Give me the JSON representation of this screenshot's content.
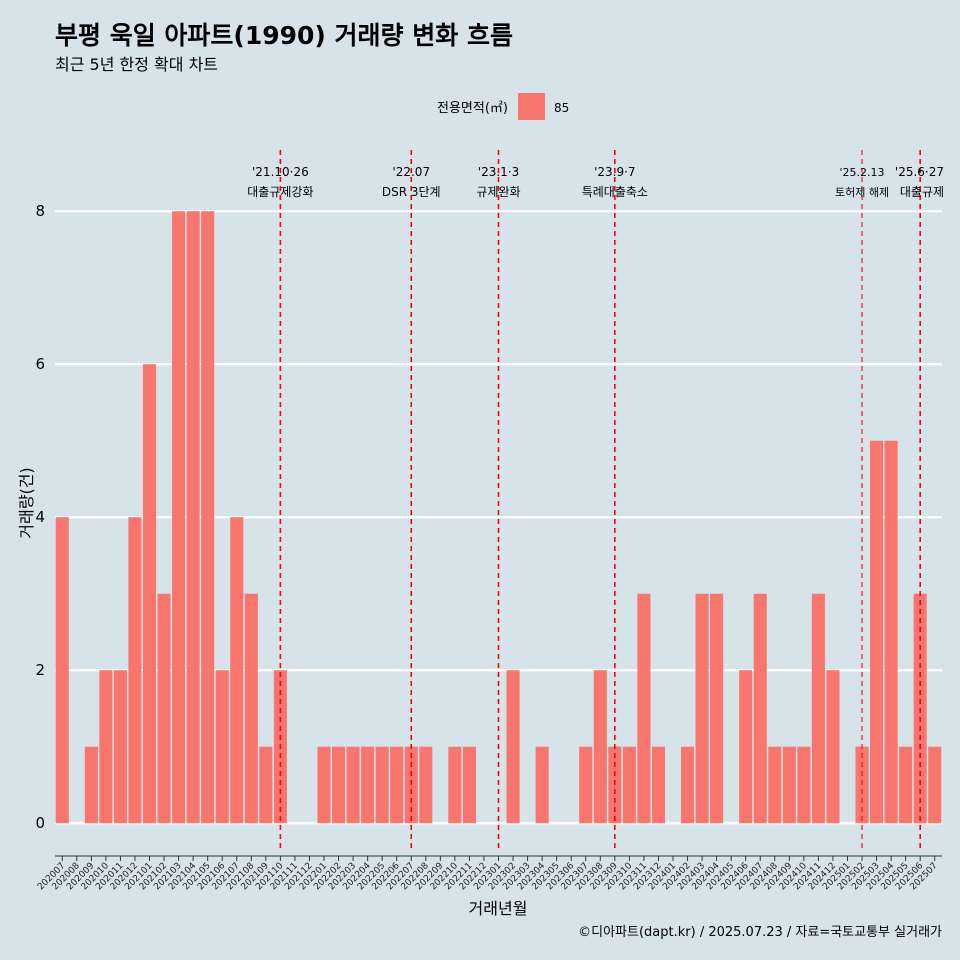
{
  "title": "부평 욱일 아파트(1990) 거래량 변화 흐름",
  "subtitle": "최근 5년 한정 확대 차트",
  "caption": "©디아파트(dapt.kr) / 2025.07.23 / 자료=국토교통부 실거래가",
  "legend": {
    "title": "전용면적(㎡)",
    "label": "85",
    "color": "#f8766d"
  },
  "chart_data": {
    "type": "bar",
    "xlabel": "거래년월",
    "ylabel": "거래량(건)",
    "ylim": [
      -0.35,
      8.8
    ],
    "yticks": [
      0,
      2,
      4,
      6,
      8
    ],
    "bar_color": "#f8766d",
    "grid": "horizontal",
    "legend_position": "top",
    "categories": [
      "202007",
      "202008",
      "202009",
      "202010",
      "202011",
      "202012",
      "202101",
      "202102",
      "202103",
      "202104",
      "202105",
      "202106",
      "202107",
      "202108",
      "202109",
      "202110",
      "202111",
      "202112",
      "202201",
      "202202",
      "202203",
      "202204",
      "202205",
      "202206",
      "202207",
      "202208",
      "202209",
      "202210",
      "202211",
      "202212",
      "202301",
      "202302",
      "202303",
      "202304",
      "202305",
      "202306",
      "202307",
      "202308",
      "202309",
      "202310",
      "202311",
      "202312",
      "202401",
      "202402",
      "202403",
      "202404",
      "202405",
      "202406",
      "202407",
      "202408",
      "202409",
      "202410",
      "202411",
      "202412",
      "202501",
      "202502",
      "202503",
      "202504",
      "202505",
      "202506",
      "202507"
    ],
    "series": [
      {
        "name": "85",
        "values": [
          4,
          0,
          1,
          2,
          2,
          4,
          6,
          3,
          8,
          8,
          8,
          2,
          4,
          3,
          1,
          2,
          0,
          0,
          1,
          1,
          1,
          1,
          1,
          1,
          1,
          1,
          0,
          1,
          1,
          0,
          0,
          2,
          0,
          1,
          0,
          0,
          1,
          2,
          1,
          1,
          3,
          1,
          0,
          1,
          3,
          3,
          0,
          2,
          3,
          1,
          1,
          1,
          3,
          2,
          0,
          1,
          5,
          5,
          1,
          3,
          1
        ]
      }
    ],
    "events": [
      {
        "position": 15.0,
        "date": "'21.10·26",
        "label": "대출규제강화",
        "style": "bold"
      },
      {
        "position": 24.0,
        "date": "'22.07",
        "label": "DSR 3단계",
        "style": "bold"
      },
      {
        "position": 30.0,
        "date": "'23.1·3",
        "label": "규제완화",
        "style": "bold"
      },
      {
        "position": 38.0,
        "date": "'23.9·7",
        "label": "특례대출축소",
        "style": "bold"
      },
      {
        "position": 55.0,
        "date": "'25.2.13",
        "label": "토허제 해제",
        "style": "thin"
      },
      {
        "position": 59.0,
        "date": "'25.6·27",
        "label": "대출규제",
        "style": "bold"
      }
    ]
  }
}
